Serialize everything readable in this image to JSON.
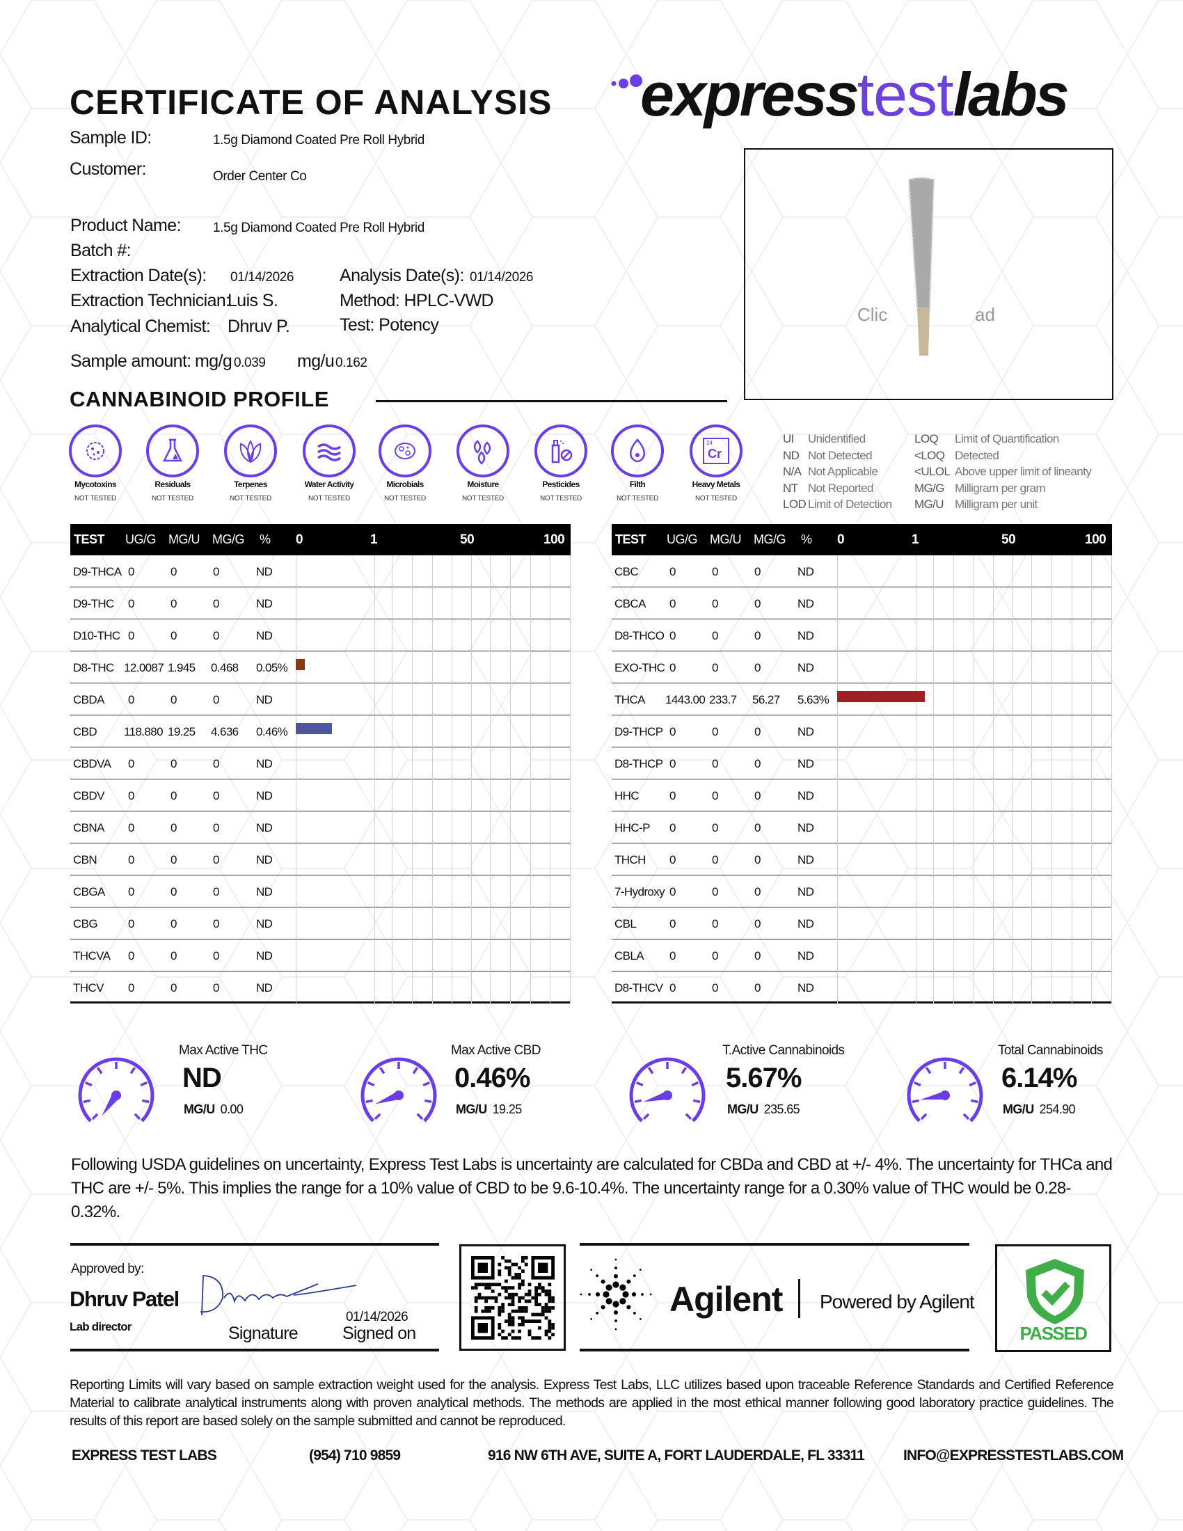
{
  "header": {
    "title": "CERTIFICATE OF ANALYSIS",
    "logo": {
      "part1": "express",
      "part2": "test",
      "part3": "labs"
    }
  },
  "sample": {
    "sample_id_label": "Sample ID:",
    "sample_id": "1.5g Diamond Coated Pre Roll Hybrid",
    "customer_label": "Customer:",
    "customer": "Order Center Co",
    "product_name_label": "Product Name:",
    "product_name": "1.5g Diamond Coated Pre Roll Hybrid",
    "batch_label": "Batch #:",
    "extraction_date_label": "Extraction Date(s):",
    "extraction_date": "01/14/2026",
    "analysis_date_label": "Analysis Date(s):",
    "analysis_date": "01/14/2026",
    "technician_label": "Extraction Technician:",
    "technician": "Luis S.",
    "method_label": "Method: HPLC-VWD",
    "chemist_label": "Analytical Chemist:",
    "chemist": "Dhruv P.",
    "test_label": "Test: Potency",
    "amount_label": "Sample amount:",
    "mg_g_label": "mg/g",
    "mg_g": "0.039",
    "mg_u_label": "mg/u",
    "mg_u": "0.162"
  },
  "photo": {
    "overlay_left": "Clic",
    "overlay_right": "ad"
  },
  "profile": {
    "heading": "CANNABINOID PROFILE"
  },
  "tests": [
    {
      "name": "Mycotoxins",
      "status": "NOT TESTED",
      "icon": "mycotoxin-icon"
    },
    {
      "name": "Residuals",
      "status": "NOT TESTED",
      "icon": "flask-icon"
    },
    {
      "name": "Terpenes",
      "status": "NOT TESTED",
      "icon": "leaf-icon"
    },
    {
      "name": "Water Activity",
      "status": "NOT TESTED",
      "icon": "water-icon"
    },
    {
      "name": "Microbials",
      "status": "NOT TESTED",
      "icon": "microbe-icon"
    },
    {
      "name": "Moisture",
      "status": "NOT TESTED",
      "icon": "droplets-icon"
    },
    {
      "name": "Pesticides",
      "status": "NOT TESTED",
      "icon": "spray-icon"
    },
    {
      "name": "Filth",
      "status": "NOT TESTED",
      "icon": "drop-icon"
    },
    {
      "name": "Heavy Metals",
      "status": "NOT TESTED",
      "icon": "chromium-icon",
      "element_number": "24",
      "element_symbol": "Cr"
    }
  ],
  "legend": [
    {
      "abbr": "UI",
      "desc": "Unidentified"
    },
    {
      "abbr": "ND",
      "desc": "Not Detected"
    },
    {
      "abbr": "N/A",
      "desc": "Not Applicable"
    },
    {
      "abbr": "NT",
      "desc": "Not Reported"
    },
    {
      "abbr": "LOD",
      "desc": "Limit of Detection"
    },
    {
      "abbr": "LOQ",
      "desc": "Limit of Quantification"
    },
    {
      "abbr": "<LOQ",
      "desc": "Detected"
    },
    {
      "abbr": "<ULOL",
      "desc": "Above upper limit of lineanty"
    },
    {
      "abbr": "MG/G",
      "desc": "Milligram per gram"
    },
    {
      "abbr": "MG/U",
      "desc": "Milligram per unit"
    }
  ],
  "table_headers": {
    "test": "TEST",
    "ug_g": "UG/G",
    "mg_u": "MG/U",
    "mg_g": "MG/G",
    "pct": "%",
    "scale_ticks": [
      "0",
      "1",
      "50",
      "100"
    ]
  },
  "chart_data": {
    "type": "bar",
    "scale_ticks": [
      0,
      1,
      50,
      100
    ],
    "tables": [
      {
        "rows": [
          {
            "test": "D9-THCA",
            "ug_g": "0",
            "mg_u": "0",
            "mg_g": "0",
            "pct": "ND",
            "value": 0
          },
          {
            "test": "D9-THC",
            "ug_g": "0",
            "mg_u": "0",
            "mg_g": "0",
            "pct": "ND",
            "value": 0
          },
          {
            "test": "D10-THC",
            "ug_g": "0",
            "mg_u": "0",
            "mg_g": "0",
            "pct": "ND",
            "value": 0
          },
          {
            "test": "D8-THC",
            "ug_g": "12.0087",
            "mg_u": "1.945",
            "mg_g": "0.468",
            "pct": "0.05%",
            "value": 0.05,
            "color": "#8b3a0e"
          },
          {
            "test": "CBDA",
            "ug_g": "0",
            "mg_u": "0",
            "mg_g": "0",
            "pct": "ND",
            "value": 0
          },
          {
            "test": "CBD",
            "ug_g": "118.880",
            "mg_u": "19.25",
            "mg_g": "4.636",
            "pct": "0.46%",
            "value": 0.46,
            "color": "#4f55a0"
          },
          {
            "test": "CBDVA",
            "ug_g": "0",
            "mg_u": "0",
            "mg_g": "0",
            "pct": "ND",
            "value": 0
          },
          {
            "test": "CBDV",
            "ug_g": "0",
            "mg_u": "0",
            "mg_g": "0",
            "pct": "ND",
            "value": 0
          },
          {
            "test": "CBNA",
            "ug_g": "0",
            "mg_u": "0",
            "mg_g": "0",
            "pct": "ND",
            "value": 0
          },
          {
            "test": "CBN",
            "ug_g": "0",
            "mg_u": "0",
            "mg_g": "0",
            "pct": "ND",
            "value": 0
          },
          {
            "test": "CBGA",
            "ug_g": "0",
            "mg_u": "0",
            "mg_g": "0",
            "pct": "ND",
            "value": 0
          },
          {
            "test": "CBG",
            "ug_g": "0",
            "mg_u": "0",
            "mg_g": "0",
            "pct": "ND",
            "value": 0
          },
          {
            "test": "THCVA",
            "ug_g": "0",
            "mg_u": "0",
            "mg_g": "0",
            "pct": "ND",
            "value": 0
          },
          {
            "test": "THCV",
            "ug_g": "0",
            "mg_u": "0",
            "mg_g": "0",
            "pct": "ND",
            "value": 0
          }
        ]
      },
      {
        "rows": [
          {
            "test": "CBC",
            "ug_g": "0",
            "mg_u": "0",
            "mg_g": "0",
            "pct": "ND",
            "value": 0
          },
          {
            "test": "CBCA",
            "ug_g": "0",
            "mg_u": "0",
            "mg_g": "0",
            "pct": "ND",
            "value": 0
          },
          {
            "test": "D8-THCO",
            "ug_g": "0",
            "mg_u": "0",
            "mg_g": "0",
            "pct": "ND",
            "value": 0
          },
          {
            "test": "EXO-THC",
            "ug_g": "0",
            "mg_u": "0",
            "mg_g": "0",
            "pct": "ND",
            "value": 0
          },
          {
            "test": "THCA",
            "ug_g": "1443.00",
            "mg_u": "233.7",
            "mg_g": "56.27",
            "pct": "5.63%",
            "value": 5.63,
            "color": "#a01f24"
          },
          {
            "test": "D9-THCP",
            "ug_g": "0",
            "mg_u": "0",
            "mg_g": "0",
            "pct": "ND",
            "value": 0
          },
          {
            "test": "D8-THCP",
            "ug_g": "0",
            "mg_u": "0",
            "mg_g": "0",
            "pct": "ND",
            "value": 0
          },
          {
            "test": "HHC",
            "ug_g": "0",
            "mg_u": "0",
            "mg_g": "0",
            "pct": "ND",
            "value": 0
          },
          {
            "test": "HHC-P",
            "ug_g": "0",
            "mg_u": "0",
            "mg_g": "0",
            "pct": "ND",
            "value": 0
          },
          {
            "test": "THCH",
            "ug_g": "0",
            "mg_u": "0",
            "mg_g": "0",
            "pct": "ND",
            "value": 0
          },
          {
            "test": "7-Hydroxy",
            "ug_g": "0",
            "mg_u": "0",
            "mg_g": "0",
            "pct": "ND",
            "value": 0
          },
          {
            "test": "CBL",
            "ug_g": "0",
            "mg_u": "0",
            "mg_g": "0",
            "pct": "ND",
            "value": 0
          },
          {
            "test": "CBLA",
            "ug_g": "0",
            "mg_u": "0",
            "mg_g": "0",
            "pct": "ND",
            "value": 0
          },
          {
            "test": "D8-THCV",
            "ug_g": "0",
            "mg_u": "0",
            "mg_g": "0",
            "pct": "ND",
            "value": 0
          }
        ]
      }
    ]
  },
  "summary": [
    {
      "label": "Max Active THC",
      "value": "ND",
      "mgu_label": "MG/U",
      "mgu": "0.00"
    },
    {
      "label": "Max Active CBD",
      "value": "0.46%",
      "mgu_label": "MG/U",
      "mgu": "19.25"
    },
    {
      "label": "T.Active Cannabinoids",
      "value": "5.67%",
      "mgu_label": "MG/U",
      "mgu": "235.65"
    },
    {
      "label": "Total Cannabinoids",
      "value": "6.14%",
      "mgu_label": "MG/U",
      "mgu": "254.90"
    }
  ],
  "uncertainty_note": "Following USDA guidelines on uncertainty, Express Test Labs is uncertainty are calculated for CBDa and CBD at +/- 4%. The uncertainty for THCa and THC are +/- 5%. This implies the range for a 10% value of CBD to be 9.6-10.4%. The uncertainty range for a 0.30% value of THC would be 0.28-0.32%.",
  "approval": {
    "approved_by_label": "Approved by:",
    "name": "Dhruv Patel",
    "role": "Lab director",
    "signature_label": "Signature",
    "signed_date": "01/14/2026",
    "signed_on_label": "Signed on"
  },
  "agilent": {
    "brand": "Agilent",
    "powered_by": "Powered by Agilent"
  },
  "status": {
    "label": "PASSED",
    "color": "#3fae49"
  },
  "disclaimer": "Reporting Limits will vary based on sample extraction weight used for the analysis. Express Test Labs, LLC utilizes based upon traceable Reference Standards and Certified Reference Material to calibrate analytical instruments along with proven analytical methods. The methods are applied in the most ethical manner following good laboratory practice guidelines. The results of this report are based solely on the sample submitted and cannot be reproduced.",
  "contact": {
    "company": "EXPRESS TEST LABS",
    "phone": "(954) 710 9859",
    "address": "916 NW 6TH AVE, SUITE A, FORT LAUDERDALE, FL 33311",
    "email": "INFO@EXPRESSTESTLABS.COM"
  },
  "colors": {
    "accent": "#6a3de8",
    "text": "#111111"
  }
}
